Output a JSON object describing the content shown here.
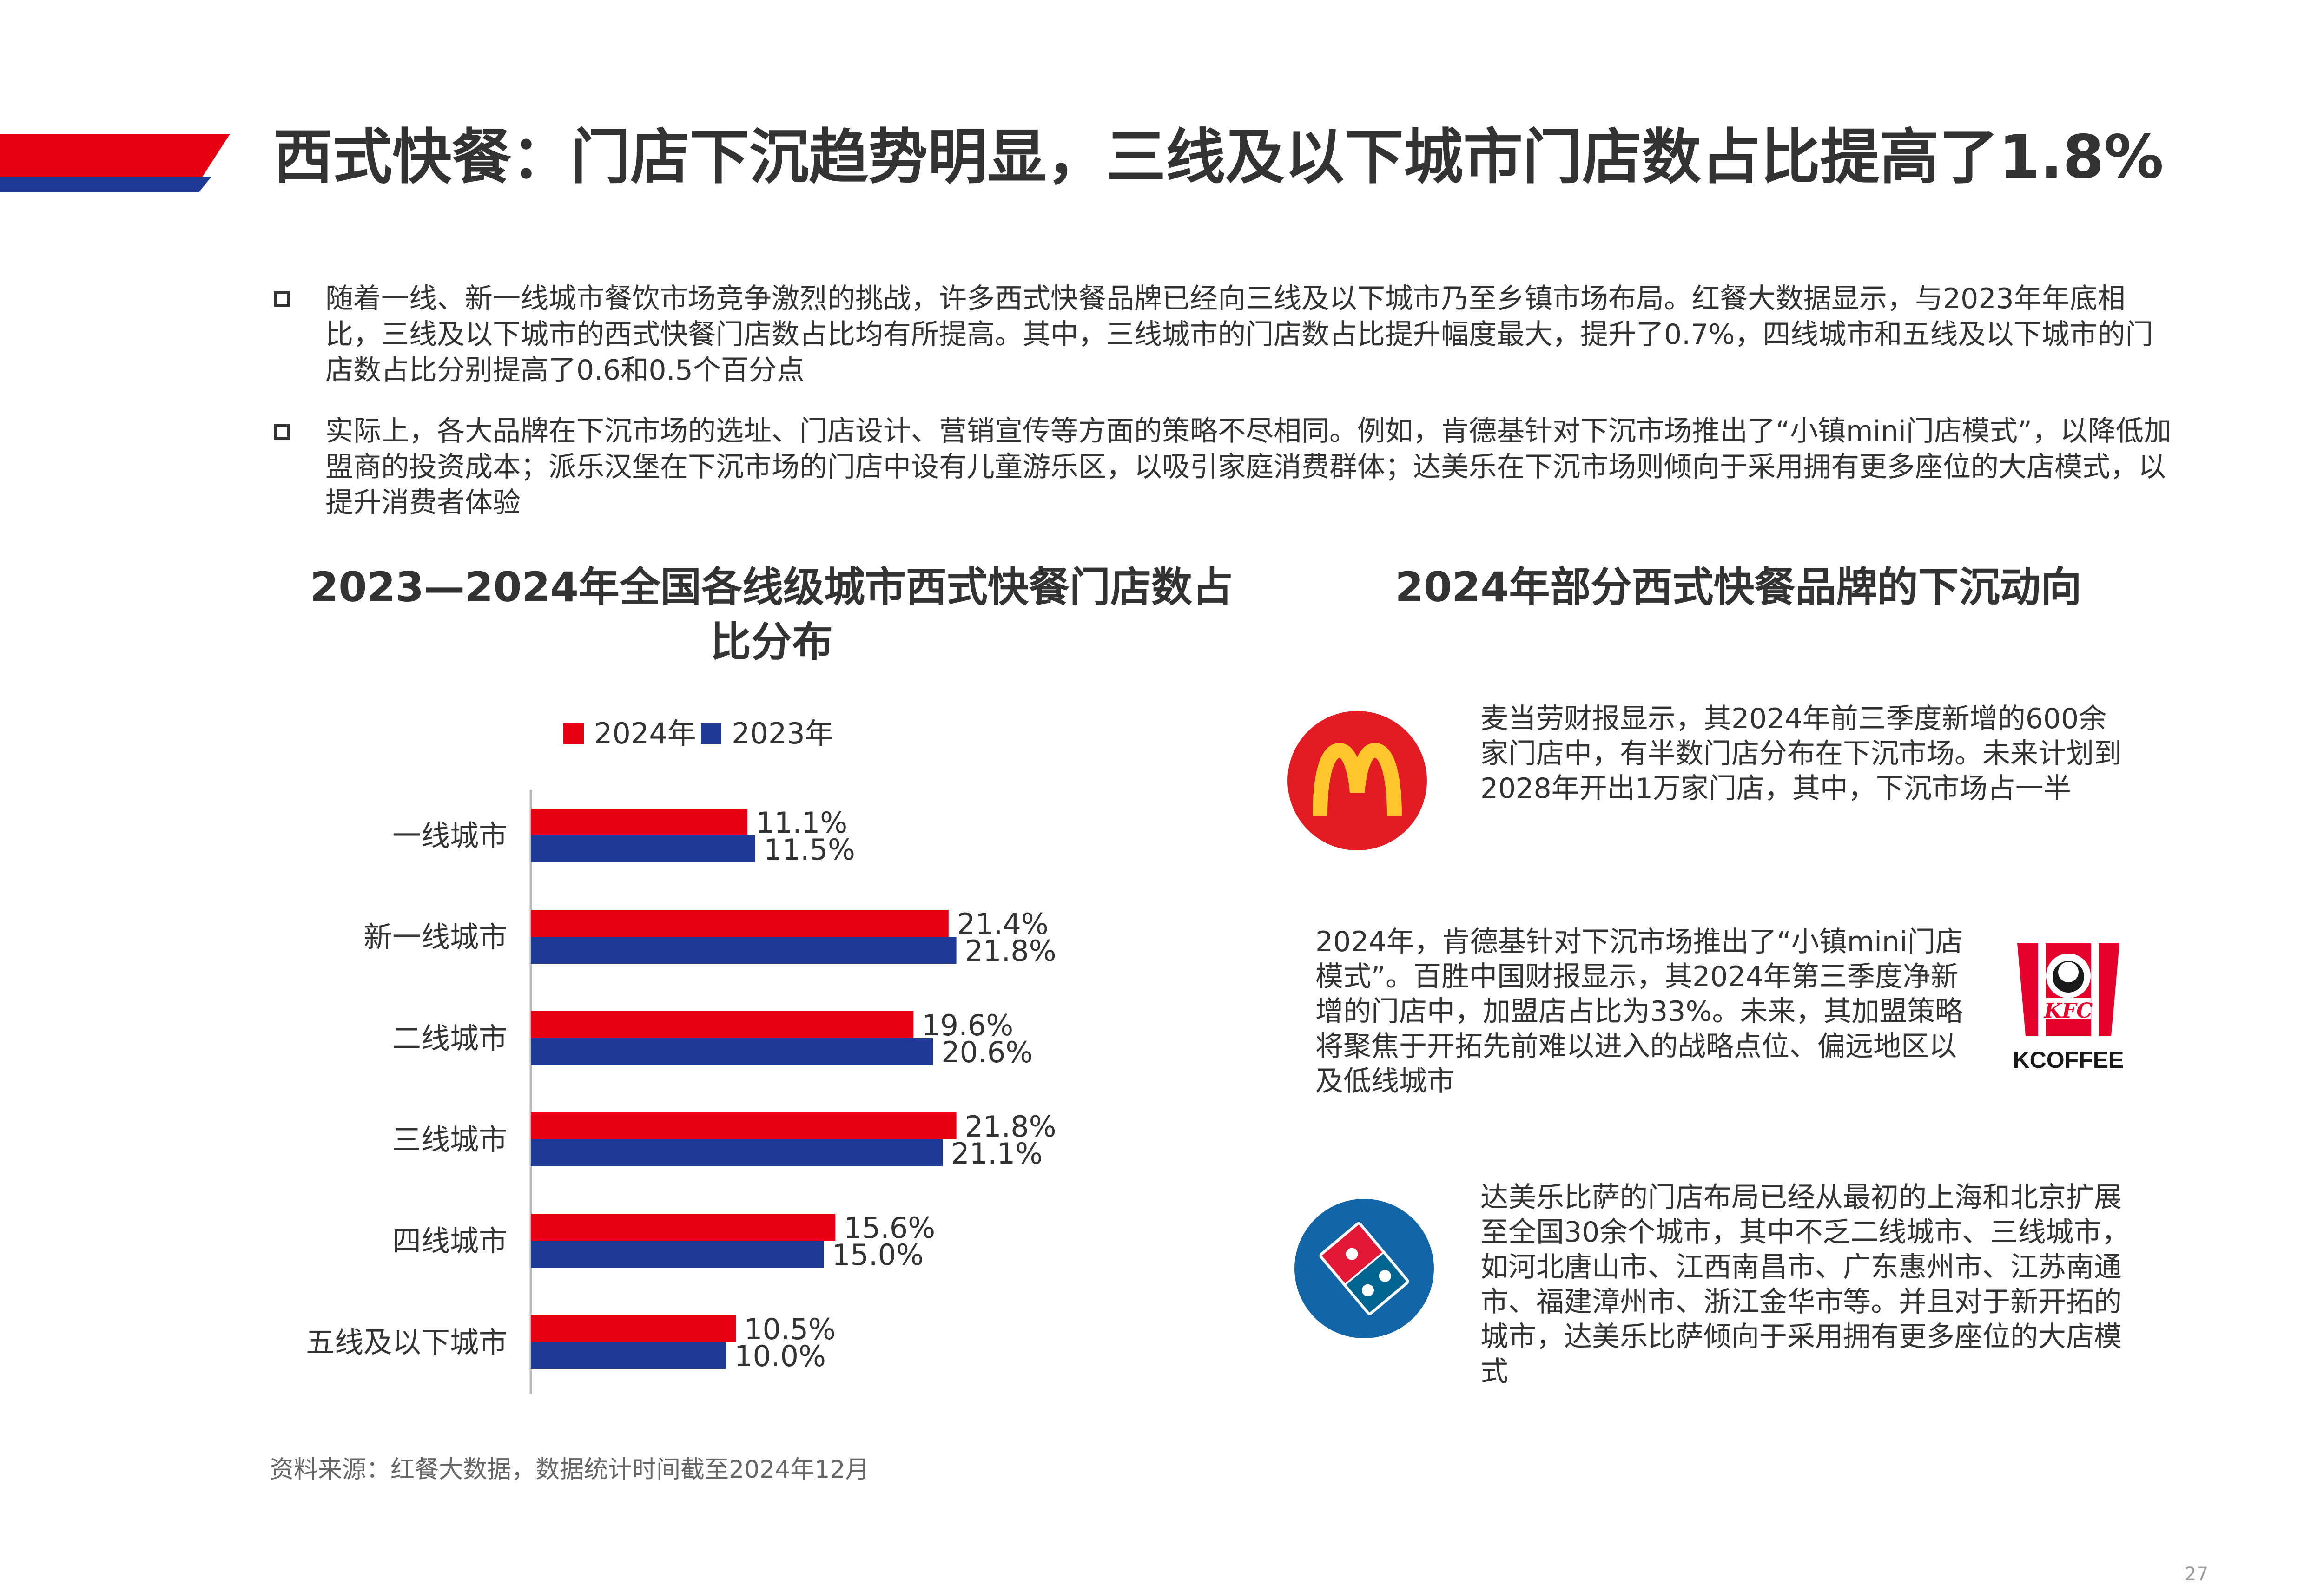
{
  "header": {
    "title": "西式快餐：门店下沉趋势明显，三线及以下城市门店数占比提高了1.8%"
  },
  "bullets": [
    {
      "text": "随着一线、新一线城市餐饮市场竞争激烈的挑战，许多西式快餐品牌已经向三线及以下城市乃至乡镇市场布局。红餐大数据显示，与2023年年底相比，三线及以下城市的西式快餐门店数占比均有所提高。其中，三线城市的门店数占比提升幅度最大，提升了0.7%，四线城市和五线及以下城市的门店数占比分别提高了0.6和0.5个百分点"
    },
    {
      "text": "实际上，各大品牌在下沉市场的选址、门店设计、营销宣传等方面的策略不尽相同。例如，肯德基针对下沉市场推出了“小镇mini门店模式”，以降低加盟商的投资成本；派乐汉堡在下沉市场的门店中设有儿童游乐区，以吸引家庭消费群体；达美乐在下沉市场则倾向于采用拥有更多座位的大店模式，以提升消费者体验"
    }
  ],
  "chart_data": {
    "type": "bar",
    "orientation": "horizontal",
    "title": "2023—2024年全国各线级城市西式快餐门店数占比分布",
    "categories": [
      "一线城市",
      "新一线城市",
      "二线城市",
      "三线城市",
      "四线城市",
      "五线及以下城市"
    ],
    "series": [
      {
        "name": "2024年",
        "color": "#e60012",
        "values": [
          11.1,
          21.4,
          19.6,
          21.8,
          15.6,
          10.5
        ]
      },
      {
        "name": "2023年",
        "color": "#1e3a96",
        "values": [
          11.5,
          21.8,
          20.6,
          21.1,
          15.0,
          10.0
        ]
      }
    ],
    "value_suffix": "%",
    "legend_position": "top",
    "grid": false
  },
  "right": {
    "title": "2024年部分西式快餐品牌的下沉动向",
    "mcdonalds_text": "麦当劳财报显示，其2024年前三季度新增的600余家门店中，有半数门店分布在下沉市场。未来计划到2028年开出1万家门店，其中，下沉市场占一半",
    "kfc_text": "2024年，肯德基针对下沉市场推出了“小镇mini门店模式”。百胜中国财报显示，其2024年第三季度净新增的门店中，加盟店占比为33%。未来，其加盟策略将聚焦于开拓先前难以进入的战略点位、偏远地区以及低线城市",
    "kfc_logo_text": "KFC",
    "kcoffee_text": "KCOFFEE",
    "dominos_text": "达美乐比萨的门店布局已经从最初的上海和北京扩展至全国30余个城市，其中不乏二线城市、三线城市，如河北唐山市、江西南昌市、广东惠州市、江苏南通市、福建漳州市、浙江金华市等。并且对于新开拓的城市，达美乐比萨倾向于采用拥有更多座位的大店模式"
  },
  "source": "资料来源：红餐大数据，数据统计时间截至2024年12月",
  "page_number": "27"
}
